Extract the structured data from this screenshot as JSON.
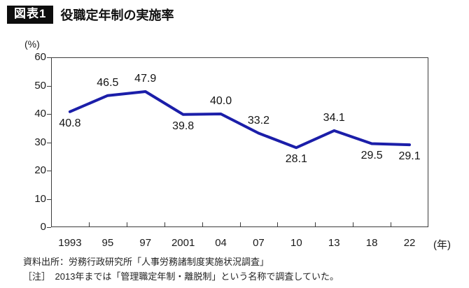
{
  "header": {
    "badge": "図表1",
    "title": "役職定年制の実施率"
  },
  "chart_data": {
    "type": "line",
    "title": "役職定年制の実施率",
    "unit_label": "(%)",
    "year_suffix": "(年)",
    "categories": [
      "1993",
      "95",
      "97",
      "2001",
      "04",
      "07",
      "10",
      "13",
      "18",
      "22"
    ],
    "values": [
      40.8,
      46.5,
      47.9,
      39.8,
      40.0,
      33.2,
      28.1,
      34.1,
      29.5,
      29.1
    ],
    "point_labels": [
      "40.8",
      "46.5",
      "47.9",
      "39.8",
      "40.0",
      "33.2",
      "28.1",
      "34.1",
      "29.5",
      "29.1"
    ],
    "label_side": [
      "below",
      "above",
      "above",
      "below",
      "above",
      "above",
      "below",
      "above",
      "below",
      "below"
    ],
    "ylim": [
      0,
      60
    ],
    "yticks": [
      0,
      10,
      20,
      30,
      40,
      50,
      60
    ],
    "grid": false,
    "legend": "none",
    "line_color": "#1b1ea9",
    "axis_color": "#3c3c3c",
    "label_color": "#141414"
  },
  "footer": {
    "source": "資料出所：労務行政研究所「人事労務諸制度実施状況調査」",
    "note": "［注］　2013年までは「管理職定年制・離脱制」という名称で調査していた。"
  }
}
